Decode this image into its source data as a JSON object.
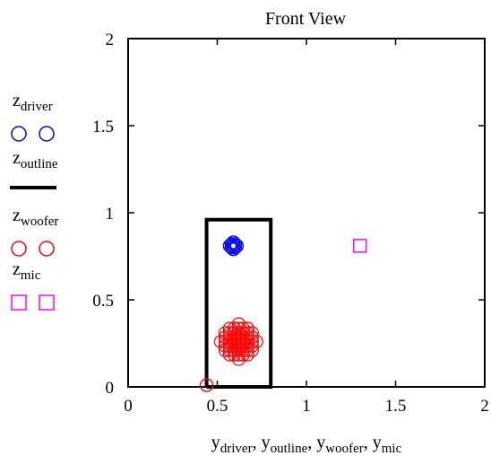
{
  "chart_data": {
    "type": "scatter",
    "title": "Front View",
    "xlim": [
      0,
      2
    ],
    "ylim": [
      0,
      2
    ],
    "x_ticks": [
      "0",
      "0.5",
      "1",
      "1.5",
      "2"
    ],
    "y_ticks": [
      "0",
      "0.5",
      "1",
      "1.5",
      "2"
    ],
    "xlabel_terms": [
      {
        "main": "y",
        "sub": "driver"
      },
      {
        "main": "y",
        "sub": "outline"
      },
      {
        "main": "y",
        "sub": "woofer"
      },
      {
        "main": "y",
        "sub": "mic"
      }
    ],
    "grid": false,
    "legend_position": "left",
    "series": [
      {
        "name_main": "z",
        "name_sub": "driver",
        "marker": "circle",
        "color": "#0000ff",
        "center": [
          0.59,
          0.81
        ],
        "radius": 0.04,
        "points": [
          [
            0.59,
            0.81
          ],
          [
            0.58,
            0.82
          ],
          [
            0.6,
            0.82
          ],
          [
            0.58,
            0.8
          ],
          [
            0.6,
            0.8
          ],
          [
            0.59,
            0.83
          ],
          [
            0.59,
            0.79
          ],
          [
            0.57,
            0.81
          ],
          [
            0.61,
            0.81
          ]
        ]
      },
      {
        "name_main": "z",
        "name_sub": "outline",
        "marker": "line",
        "color": "#000000",
        "points": [
          [
            0.44,
            0
          ],
          [
            0.44,
            0.96
          ],
          [
            0.8,
            0.96
          ],
          [
            0.8,
            0
          ],
          [
            0.44,
            0
          ]
        ]
      },
      {
        "name_main": "z",
        "name_sub": "woofer",
        "marker": "circle",
        "color": "#ff0000",
        "center": [
          0.62,
          0.26
        ],
        "radius": 0.1,
        "spacing": 0.025,
        "points": [
          [
            0.44,
            0.01
          ]
        ]
      },
      {
        "name_main": "z",
        "name_sub": "mic",
        "marker": "square",
        "color": "#ff00ff",
        "points": [
          [
            1.3,
            0.81
          ]
        ]
      }
    ]
  }
}
